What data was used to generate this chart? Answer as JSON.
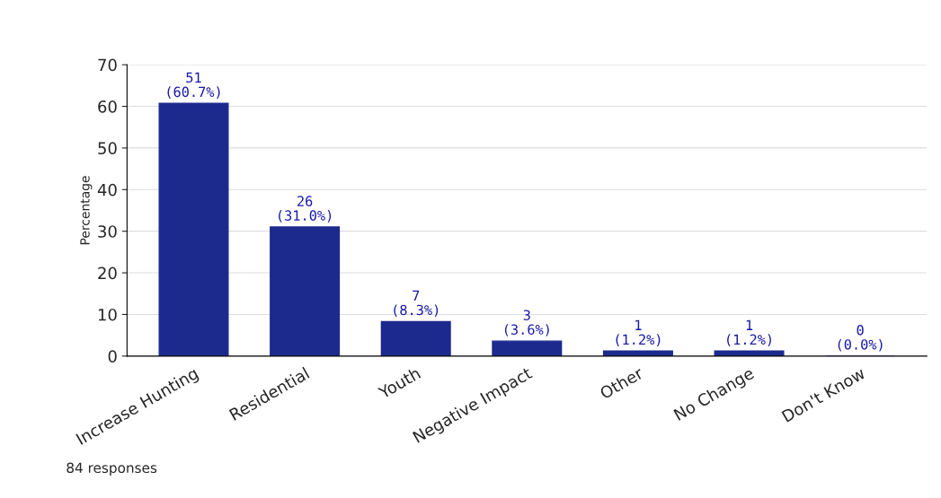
{
  "chart_data": {
    "type": "bar",
    "ylabel": "Percentage",
    "categories": [
      "Increase Hunting",
      "Residential",
      "Youth",
      "Negative Impact",
      "Other",
      "No Change",
      "Don't Know"
    ],
    "values": [
      60.7,
      31.0,
      8.3,
      3.6,
      1.2,
      1.2,
      0.0
    ],
    "value_labels": [
      "51\n(60.7%)",
      "26\n(31.0%)",
      "7\n(8.3%)",
      "3\n(3.6%)",
      "1\n(1.2%)",
      "1\n(1.2%)",
      "0\n(0.0%)"
    ],
    "color": "#1c2a8e",
    "ylim": [
      0,
      70
    ],
    "yticks": [
      0,
      10,
      20,
      30,
      40,
      50,
      60,
      70
    ],
    "grid": "y",
    "legend": false,
    "annotations": [
      "84 responses"
    ]
  }
}
